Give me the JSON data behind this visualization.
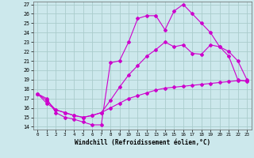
{
  "xlabel": "Windchill (Refroidissement éolien,°C)",
  "bg_color": "#cce8ec",
  "grid_color": "#aacccc",
  "line_color": "#cc00cc",
  "xlim": [
    -0.5,
    23.5
  ],
  "ylim": [
    13.7,
    27.3
  ],
  "xticks": [
    0,
    1,
    2,
    3,
    4,
    5,
    6,
    7,
    8,
    9,
    10,
    11,
    12,
    13,
    14,
    15,
    16,
    17,
    18,
    19,
    20,
    21,
    22,
    23
  ],
  "yticks": [
    14,
    15,
    16,
    17,
    18,
    19,
    20,
    21,
    22,
    23,
    24,
    25,
    26,
    27
  ],
  "line1_x": [
    0,
    1,
    2,
    3,
    4,
    5,
    6,
    7,
    8,
    9,
    10,
    11,
    12,
    13,
    14,
    15,
    16,
    17,
    18,
    19,
    20,
    21,
    22,
    23
  ],
  "line1_y": [
    17.5,
    17.0,
    15.5,
    15.0,
    14.8,
    14.5,
    14.2,
    14.2,
    20.8,
    21.0,
    23.0,
    25.5,
    25.8,
    25.8,
    24.3,
    26.3,
    27.0,
    26.0,
    25.0,
    24.0,
    22.5,
    21.5,
    19.0,
    18.8
  ],
  "line2_x": [
    0,
    1,
    2,
    3,
    4,
    5,
    6,
    7,
    8,
    9,
    10,
    11,
    12,
    13,
    14,
    15,
    16,
    17,
    18,
    19,
    20,
    21,
    22,
    23
  ],
  "line2_y": [
    17.5,
    16.8,
    15.8,
    15.5,
    15.2,
    15.0,
    15.2,
    15.5,
    16.8,
    18.2,
    19.5,
    20.5,
    21.5,
    22.2,
    23.0,
    22.5,
    22.7,
    21.8,
    21.7,
    22.7,
    22.5,
    22.0,
    21.0,
    19.0
  ],
  "line3_x": [
    0,
    1,
    2,
    3,
    4,
    5,
    6,
    7,
    8,
    9,
    10,
    11,
    12,
    13,
    14,
    15,
    16,
    17,
    18,
    19,
    20,
    21,
    22,
    23
  ],
  "line3_y": [
    17.5,
    16.5,
    15.8,
    15.5,
    15.2,
    15.0,
    15.2,
    15.5,
    16.0,
    16.5,
    17.0,
    17.3,
    17.6,
    17.9,
    18.1,
    18.2,
    18.3,
    18.4,
    18.5,
    18.6,
    18.7,
    18.8,
    18.9,
    18.9
  ]
}
